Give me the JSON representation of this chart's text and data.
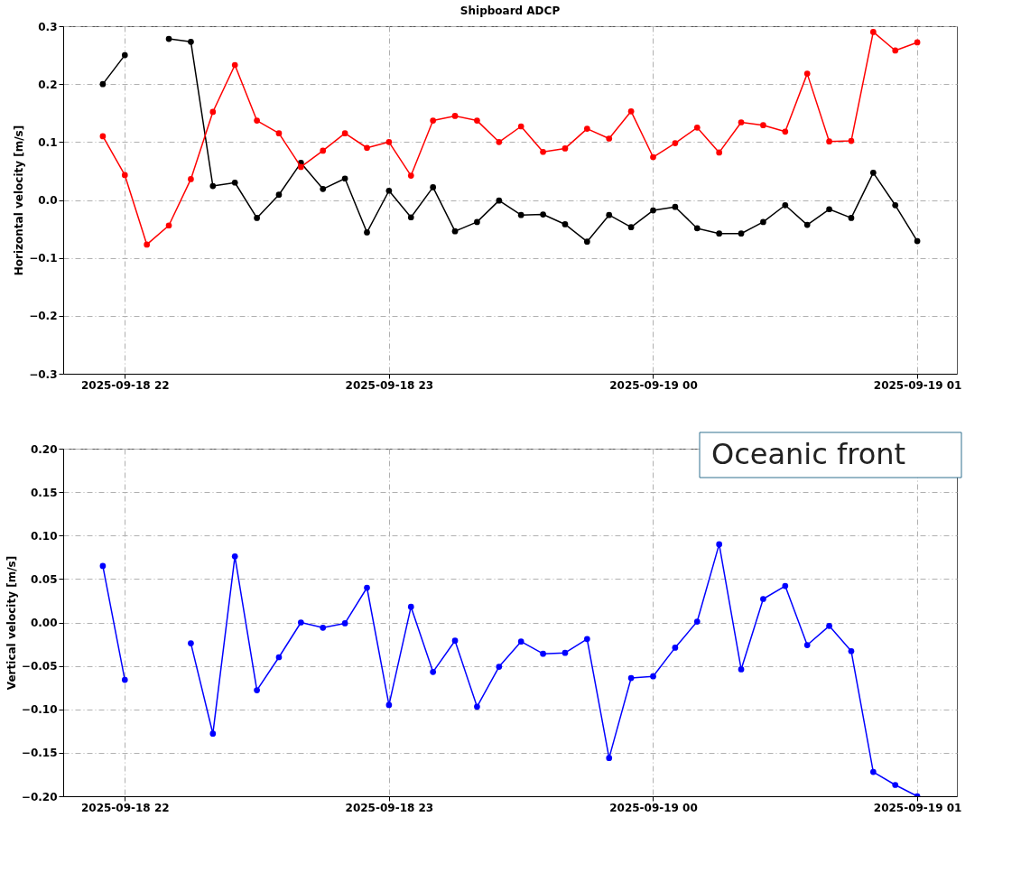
{
  "chart_data": [
    {
      "type": "line",
      "title": "Shipboard ADCP",
      "ylabel": "Horizontal velocity [m/s]",
      "x": [
        "2025-09-18T21:55",
        "2025-09-18T22:00",
        "2025-09-18T22:05",
        "2025-09-18T22:10",
        "2025-09-18T22:15",
        "2025-09-18T22:20",
        "2025-09-18T22:25",
        "2025-09-18T22:30",
        "2025-09-18T22:35",
        "2025-09-18T22:40",
        "2025-09-18T22:45",
        "2025-09-18T22:50",
        "2025-09-18T22:55",
        "2025-09-18T23:00",
        "2025-09-18T23:05",
        "2025-09-18T23:10",
        "2025-09-18T23:15",
        "2025-09-18T23:20",
        "2025-09-18T23:25",
        "2025-09-18T23:30",
        "2025-09-18T23:35",
        "2025-09-18T23:40",
        "2025-09-18T23:45",
        "2025-09-18T23:50",
        "2025-09-18T23:55",
        "2025-09-19T00:00",
        "2025-09-19T00:05",
        "2025-09-19T00:10",
        "2025-09-19T00:15",
        "2025-09-19T00:20",
        "2025-09-19T00:25",
        "2025-09-19T00:30",
        "2025-09-19T00:35",
        "2025-09-19T00:40",
        "2025-09-19T00:45",
        "2025-09-19T00:50",
        "2025-09-19T00:55",
        "2025-09-19T01:00"
      ],
      "series": [
        {
          "color": "#000000",
          "values": [
            0.2,
            0.25,
            null,
            0.278,
            0.273,
            0.024,
            0.03,
            -0.031,
            0.009,
            0.064,
            0.019,
            0.037,
            -0.056,
            0.016,
            -0.03,
            0.022,
            -0.054,
            -0.038,
            -0.001,
            -0.026,
            -0.025,
            -0.042,
            -0.072,
            -0.026,
            -0.047,
            -0.018,
            -0.012,
            -0.049,
            -0.058,
            -0.058,
            -0.038,
            -0.009,
            -0.043,
            -0.016,
            -0.031,
            0.047,
            -0.009,
            -0.071
          ]
        },
        {
          "color": "#ff0000",
          "values": [
            0.11,
            0.043,
            -0.077,
            -0.044,
            0.036,
            0.152,
            0.233,
            0.137,
            0.115,
            0.057,
            0.085,
            0.115,
            0.09,
            0.1,
            0.042,
            0.137,
            0.145,
            0.137,
            0.1,
            0.127,
            0.083,
            0.089,
            0.123,
            0.106,
            0.153,
            0.074,
            0.098,
            0.125,
            0.082,
            0.134,
            0.129,
            0.118,
            0.218,
            0.101,
            0.102,
            0.29,
            0.258,
            0.272
          ]
        }
      ],
      "xlim": [
        "2025-09-18T21:46",
        "2025-09-19T01:09"
      ],
      "xticks": [
        {
          "value": "2025-09-18T22:00",
          "label": "2025-09-18 22"
        },
        {
          "value": "2025-09-18T23:00",
          "label": "2025-09-18 23"
        },
        {
          "value": "2025-09-19T00:00",
          "label": "2025-09-19 00"
        },
        {
          "value": "2025-09-19T01:00",
          "label": "2025-09-19 01"
        }
      ],
      "ylim": [
        -0.3,
        0.3
      ],
      "yticks": [
        {
          "value": -0.3,
          "label": "−0.3"
        },
        {
          "value": -0.2,
          "label": "−0.2"
        },
        {
          "value": -0.1,
          "label": "−0.1"
        },
        {
          "value": 0,
          "label": "0.0"
        },
        {
          "value": 0.1,
          "label": "0.1"
        },
        {
          "value": 0.2,
          "label": "0.2"
        },
        {
          "value": 0.3,
          "label": "0.3"
        }
      ],
      "grid": true,
      "marker": "circle",
      "line_style": "solid"
    },
    {
      "type": "line",
      "ylabel": "Vertical velocity [m/s]",
      "annotations": [
        "Oceanic front"
      ],
      "x": [
        "2025-09-18T21:55",
        "2025-09-18T22:00",
        "2025-09-18T22:05",
        "2025-09-18T22:10",
        "2025-09-18T22:15",
        "2025-09-18T22:20",
        "2025-09-18T22:25",
        "2025-09-18T22:30",
        "2025-09-18T22:35",
        "2025-09-18T22:40",
        "2025-09-18T22:45",
        "2025-09-18T22:50",
        "2025-09-18T22:55",
        "2025-09-18T23:00",
        "2025-09-18T23:05",
        "2025-09-18T23:10",
        "2025-09-18T23:15",
        "2025-09-18T23:20",
        "2025-09-18T23:25",
        "2025-09-18T23:30",
        "2025-09-18T23:35",
        "2025-09-18T23:40",
        "2025-09-18T23:45",
        "2025-09-18T23:50",
        "2025-09-18T23:55",
        "2025-09-19T00:00",
        "2025-09-19T00:05",
        "2025-09-19T00:10",
        "2025-09-19T00:15",
        "2025-09-19T00:20",
        "2025-09-19T00:25",
        "2025-09-19T00:30",
        "2025-09-19T00:35",
        "2025-09-19T00:40",
        "2025-09-19T00:45",
        "2025-09-19T00:50",
        "2025-09-19T00:55",
        "2025-09-19T01:00"
      ],
      "series": [
        {
          "color": "#0000ff",
          "values": [
            0.065,
            -0.066,
            null,
            null,
            -0.024,
            -0.128,
            0.076,
            -0.078,
            -0.04,
            0.0,
            -0.006,
            -0.001,
            0.04,
            -0.095,
            0.018,
            -0.057,
            -0.021,
            -0.097,
            -0.051,
            -0.022,
            -0.036,
            -0.035,
            -0.019,
            -0.156,
            -0.064,
            -0.062,
            -0.029,
            0.001,
            0.09,
            -0.054,
            0.027,
            0.042,
            -0.026,
            -0.004,
            -0.033,
            -0.172,
            -0.187,
            -0.2
          ]
        }
      ],
      "xlim": [
        "2025-09-18T21:46",
        "2025-09-19T01:09"
      ],
      "xticks": [
        {
          "value": "2025-09-18T22:00",
          "label": "2025-09-18 22"
        },
        {
          "value": "2025-09-18T23:00",
          "label": "2025-09-18 23"
        },
        {
          "value": "2025-09-19T00:00",
          "label": "2025-09-19 00"
        },
        {
          "value": "2025-09-19T01:00",
          "label": "2025-09-19 01"
        }
      ],
      "ylim": [
        -0.2,
        0.2
      ],
      "yticks": [
        {
          "value": -0.2,
          "label": "−0.20"
        },
        {
          "value": -0.15,
          "label": "−0.15"
        },
        {
          "value": -0.1,
          "label": "−0.10"
        },
        {
          "value": -0.05,
          "label": "−0.05"
        },
        {
          "value": 0,
          "label": "0.00"
        },
        {
          "value": 0.05,
          "label": "0.05"
        },
        {
          "value": 0.1,
          "label": "0.10"
        },
        {
          "value": 0.15,
          "label": "0.15"
        },
        {
          "value": 0.2,
          "label": "0.20"
        }
      ],
      "grid": true,
      "marker": "circle",
      "line_style": "solid"
    }
  ]
}
